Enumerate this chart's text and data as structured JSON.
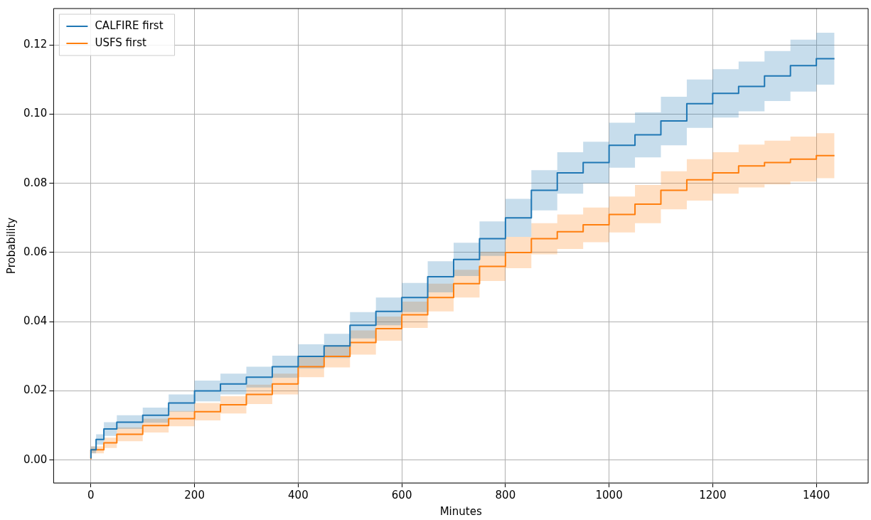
{
  "chart_data": {
    "type": "step",
    "xlabel": "Minutes",
    "ylabel": "Probability",
    "xlim": [
      -72,
      1500
    ],
    "ylim": [
      -0.0066,
      0.1305
    ],
    "xticks": [
      0,
      200,
      400,
      600,
      800,
      1000,
      1200,
      1400
    ],
    "yticks": [
      {
        "value": 0,
        "label": "0.00"
      },
      {
        "value": 0.02,
        "label": "0.02"
      },
      {
        "value": 0.04,
        "label": "0.04"
      },
      {
        "value": 0.06,
        "label": "0.06"
      },
      {
        "value": 0.08,
        "label": "0.08"
      },
      {
        "value": 0.1,
        "label": "0.10"
      },
      {
        "value": 0.12,
        "label": "0.12"
      }
    ],
    "grid": true,
    "legend": "top left",
    "marker": "none",
    "line_style": "solid",
    "series": [
      {
        "name": "CALFIRE first",
        "color": "#1f77b4",
        "x": [
          0,
          10,
          25,
          50,
          100,
          150,
          200,
          250,
          300,
          350,
          400,
          450,
          500,
          550,
          600,
          650,
          700,
          750,
          800,
          850,
          900,
          950,
          1000,
          1050,
          1100,
          1150,
          1200,
          1250,
          1300,
          1350,
          1400,
          1435
        ],
        "values": [
          0.0005,
          0.003,
          0.006,
          0.009,
          0.011,
          0.013,
          0.0165,
          0.02,
          0.022,
          0.024,
          0.027,
          0.03,
          0.033,
          0.039,
          0.043,
          0.047,
          0.053,
          0.058,
          0.064,
          0.07,
          0.078,
          0.083,
          0.086,
          0.091,
          0.094,
          0.098,
          0.103,
          0.106,
          0.108,
          0.111,
          0.114,
          0.116
        ],
        "lower": [
          0,
          0.002,
          0.0045,
          0.007,
          0.009,
          0.0108,
          0.014,
          0.017,
          0.019,
          0.021,
          0.0238,
          0.0265,
          0.0295,
          0.0352,
          0.039,
          0.0428,
          0.0485,
          0.0532,
          0.059,
          0.0645,
          0.0722,
          0.077,
          0.08,
          0.0845,
          0.0875,
          0.091,
          0.096,
          0.099,
          0.1008,
          0.1038,
          0.1065,
          0.1085
        ],
        "upper": [
          0.001,
          0.004,
          0.0075,
          0.011,
          0.013,
          0.0152,
          0.019,
          0.023,
          0.025,
          0.027,
          0.0302,
          0.0335,
          0.0365,
          0.0428,
          0.047,
          0.0512,
          0.0575,
          0.0628,
          0.069,
          0.0755,
          0.0838,
          0.089,
          0.092,
          0.0975,
          0.1005,
          0.105,
          0.11,
          0.113,
          0.1152,
          0.1182,
          0.1215,
          0.1235
        ]
      },
      {
        "name": "USFS first",
        "color": "#ff7f0e",
        "x": [
          0,
          25,
          50,
          100,
          150,
          200,
          250,
          300,
          350,
          400,
          450,
          500,
          550,
          600,
          650,
          700,
          750,
          800,
          850,
          900,
          950,
          1000,
          1050,
          1100,
          1150,
          1200,
          1250,
          1300,
          1350,
          1400,
          1435
        ],
        "values": [
          0.0003,
          0.003,
          0.005,
          0.0075,
          0.01,
          0.012,
          0.014,
          0.016,
          0.019,
          0.022,
          0.027,
          0.03,
          0.034,
          0.038,
          0.042,
          0.047,
          0.051,
          0.056,
          0.06,
          0.064,
          0.066,
          0.068,
          0.071,
          0.074,
          0.078,
          0.081,
          0.083,
          0.085,
          0.086,
          0.087,
          0.088
        ],
        "lower": [
          0,
          0.002,
          0.0035,
          0.0055,
          0.008,
          0.0098,
          0.0115,
          0.0135,
          0.0162,
          0.019,
          0.024,
          0.0268,
          0.0305,
          0.0345,
          0.0382,
          0.043,
          0.047,
          0.0518,
          0.0555,
          0.0595,
          0.061,
          0.063,
          0.0658,
          0.0685,
          0.0725,
          0.075,
          0.077,
          0.0788,
          0.0797,
          0.0805,
          0.0815
        ],
        "upper": [
          0.0006,
          0.004,
          0.0065,
          0.0095,
          0.012,
          0.0142,
          0.0165,
          0.0185,
          0.0218,
          0.025,
          0.03,
          0.0332,
          0.0375,
          0.0415,
          0.0458,
          0.051,
          0.055,
          0.0602,
          0.0645,
          0.0685,
          0.071,
          0.073,
          0.0762,
          0.0795,
          0.0835,
          0.087,
          0.089,
          0.0912,
          0.0923,
          0.0935,
          0.0945
        ]
      }
    ]
  }
}
